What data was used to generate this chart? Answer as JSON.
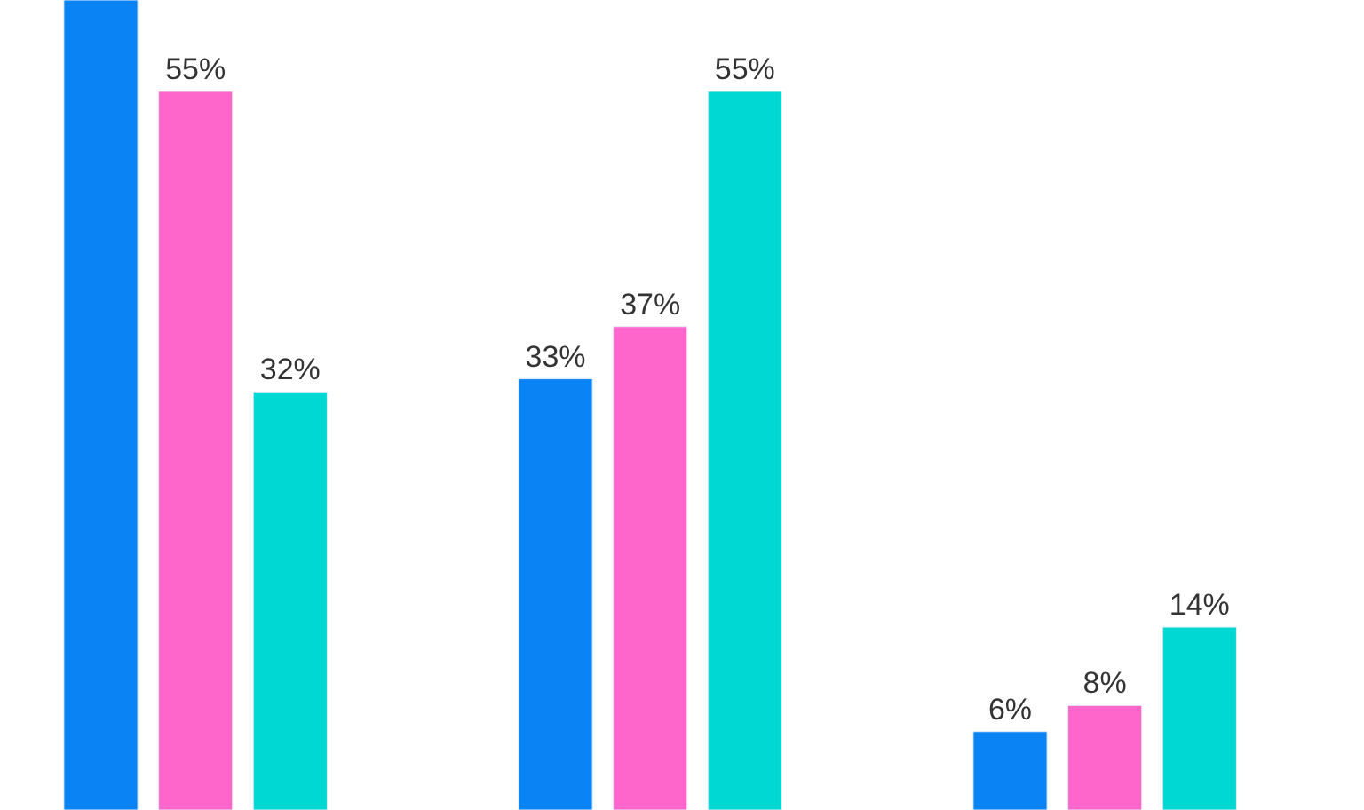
{
  "chart_data": {
    "type": "bar",
    "categories": [
      null,
      null,
      null
    ],
    "series": [
      {
        "color": "#0a84f5",
        "values": [
          62,
          33,
          6
        ],
        "value_labels": [
          null,
          "33%",
          "6%"
        ]
      },
      {
        "color": "#ff66cc",
        "values": [
          55,
          37,
          8
        ],
        "value_labels": [
          "55%",
          "37%",
          "8%"
        ]
      },
      {
        "color": "#00d8d4",
        "values": [
          32,
          55,
          14
        ],
        "value_labels": [
          "32%",
          "55%",
          "14%"
        ]
      }
    ],
    "ylim": [
      0,
      62
    ],
    "tick_labels": false,
    "legend": false
  }
}
